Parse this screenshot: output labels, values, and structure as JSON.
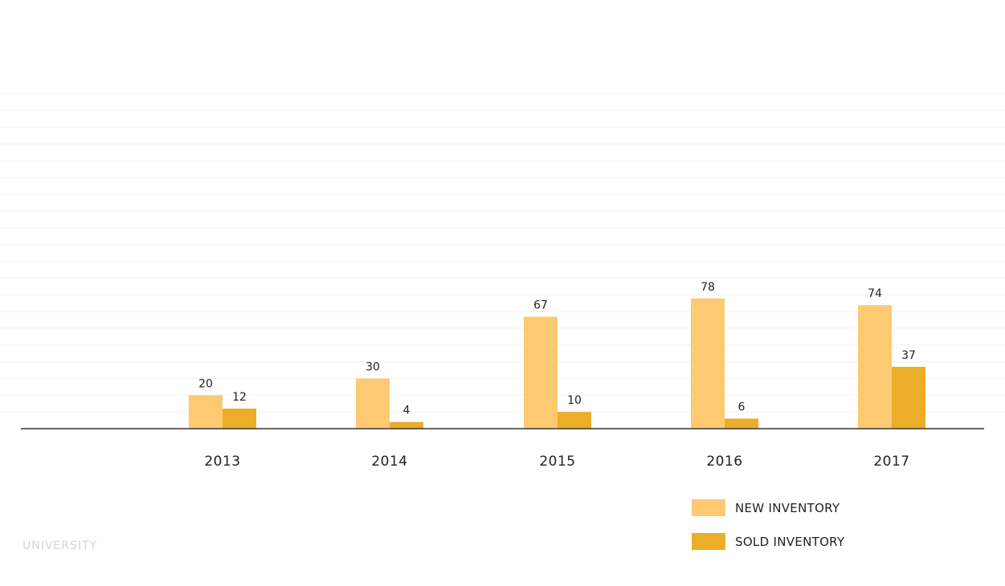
{
  "chart_data": {
    "type": "bar",
    "categories": [
      "2013",
      "2014",
      "2015",
      "2016",
      "2017"
    ],
    "series": [
      {
        "name": "NEW INVENTORY",
        "values": [
          20,
          30,
          67,
          78,
          74
        ],
        "color": "#fdca72"
      },
      {
        "name": "SOLD INVENTORY",
        "values": [
          12,
          4,
          10,
          6,
          37
        ],
        "color": "#ecad28"
      }
    ],
    "title": "",
    "xlabel": "",
    "ylabel": "",
    "ylim": [
      0,
      200
    ],
    "grid": true,
    "legend": "bottom-right",
    "axis_color": "#333333",
    "grid_color": "#f0f0f0"
  },
  "watermark": "UNIVERSITY"
}
